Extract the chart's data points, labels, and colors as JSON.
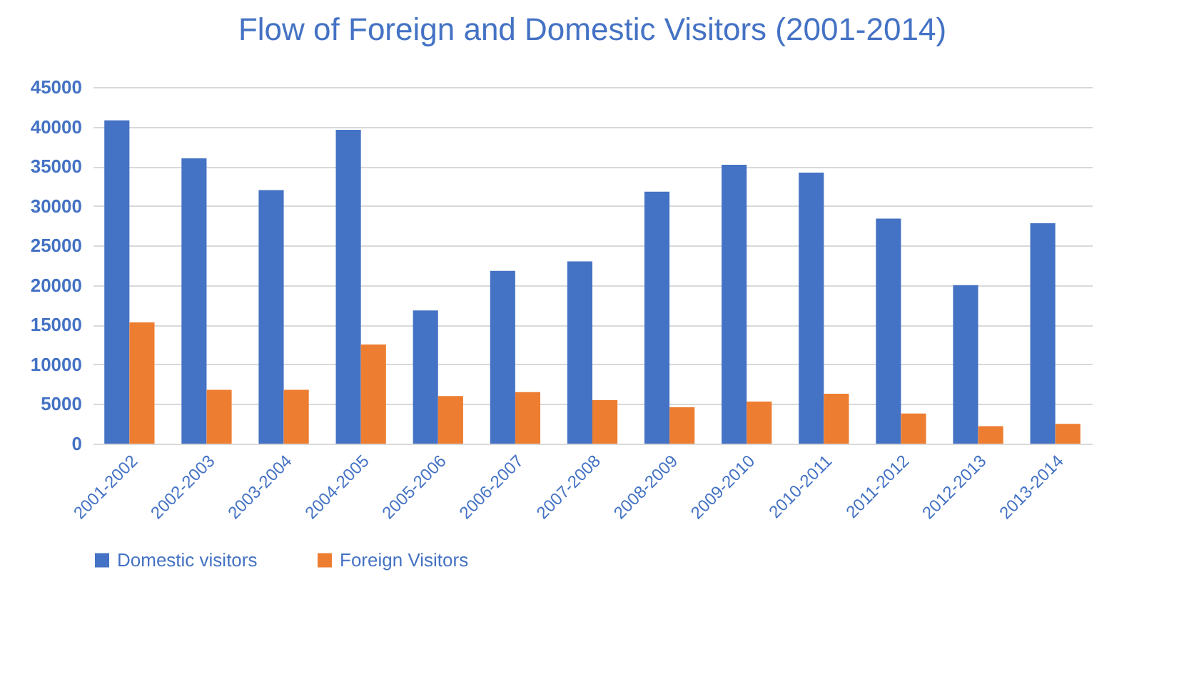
{
  "chart_data": {
    "type": "bar",
    "title": "Flow of Foreign and Domestic Visitors (2001-2014)",
    "categories": [
      "2001-2002",
      "2002-2003",
      "2003-2004",
      "2004-2005",
      "2005-2006",
      "2006-2007",
      "2007-2008",
      "2008-2009",
      "2009-2010",
      "2010-2011",
      "2011-2012",
      "2012-2013",
      "2013-2014"
    ],
    "series": [
      {
        "name": "Domestic visitors",
        "color": "#4472c4",
        "values": [
          40800,
          36000,
          32000,
          39600,
          16800,
          21800,
          23000,
          31800,
          35200,
          34200,
          28400,
          20000,
          27800
        ]
      },
      {
        "name": "Foreign Visitors",
        "color": "#ed7d31",
        "values": [
          15300,
          6800,
          6800,
          12500,
          6000,
          6500,
          5500,
          4600,
          5300,
          6300,
          3800,
          2200,
          2500
        ]
      }
    ],
    "ylim": [
      0,
      45000
    ],
    "yticks": [
      0,
      5000,
      10000,
      15000,
      20000,
      25000,
      30000,
      35000,
      40000,
      45000
    ],
    "grid": "y",
    "legend": "bottom"
  }
}
